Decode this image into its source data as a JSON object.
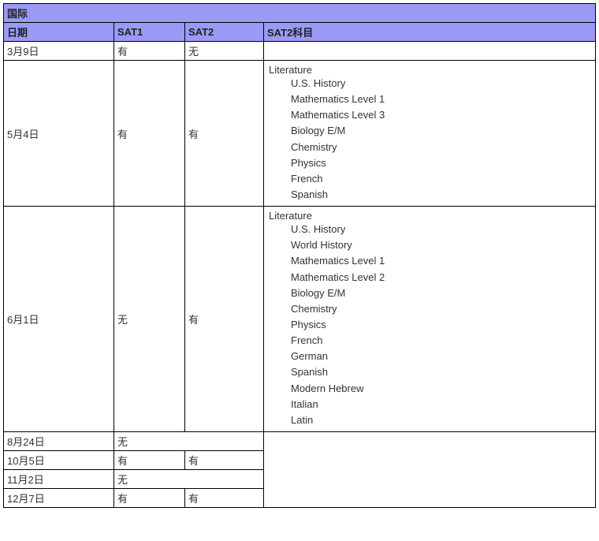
{
  "colors": {
    "header_bg": "#9a9af5",
    "border": "#000000",
    "text": "#333333",
    "background": "#ffffff"
  },
  "title_row": "国际",
  "columns": {
    "date": "日期",
    "sat1": "SAT1",
    "sat2": "SAT2",
    "sat2_subjects": "SAT2科目"
  },
  "rows": [
    {
      "date": "3月9日",
      "sat1": "有",
      "sat2": "无",
      "subjects_first": "",
      "subjects_rest": []
    },
    {
      "date": "5月4日",
      "sat1": "有",
      "sat2": "有",
      "subjects_first": "Literature",
      "subjects_rest": [
        "U.S. History",
        "Mathematics Level 1",
        "Mathematics Level 3",
        "Biology E/M",
        "Chemistry",
        "Physics",
        "French",
        "Spanish"
      ]
    },
    {
      "date": "6月1日",
      "sat1": "无",
      "sat2": "有",
      "subjects_first": "Literature",
      "subjects_rest": [
        "U.S. History",
        "World History",
        "Mathematics Level 1",
        "Mathematics Level 2",
        "Biology E/M",
        "Chemistry",
        "Physics",
        "French",
        "German",
        "Spanish",
        "Modern Hebrew",
        "Italian",
        "Latin"
      ]
    },
    {
      "date": "8月24日",
      "sat1": "无",
      "sat1_colspan2": true
    },
    {
      "date": "10月5日",
      "sat1": "有",
      "sat2": "有"
    },
    {
      "date": "11月2日",
      "sat1": "无",
      "sat1_colspan2": true
    },
    {
      "date": "12月7日",
      "sat1": "有",
      "sat2": "有"
    }
  ],
  "tail_subjects_rowspan": 4
}
